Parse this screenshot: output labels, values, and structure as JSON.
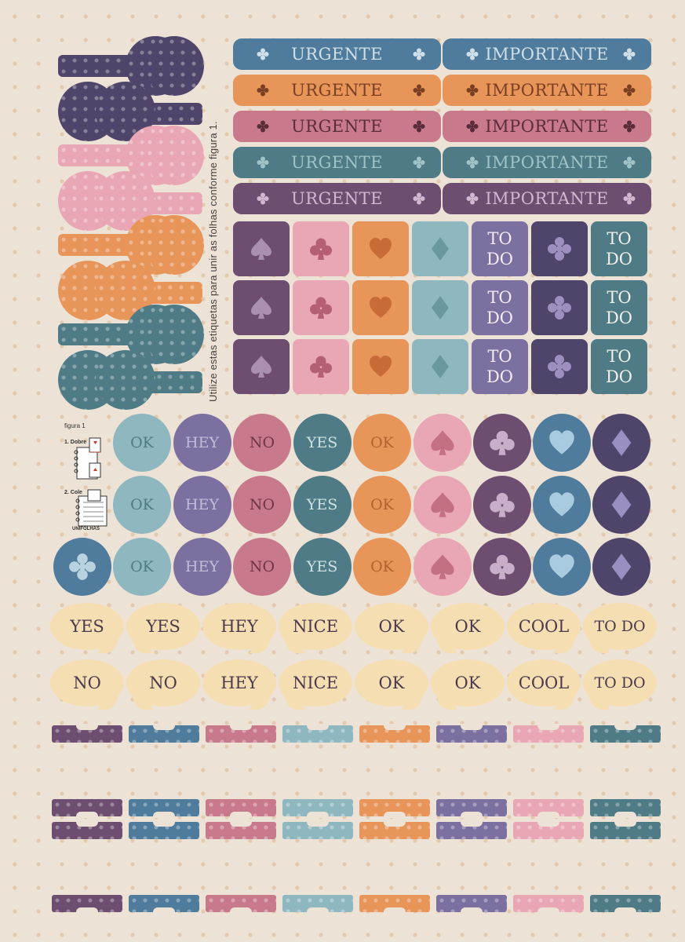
{
  "colors": {
    "blue": "#4f7c9c",
    "orange": "#e8955a",
    "rose": "#c87a8c",
    "teal": "#4e7b86",
    "plum": "#6d4e70",
    "pink": "#e9a6b4",
    "aqua": "#8fb7bf",
    "lavender": "#7b70a0",
    "navy": "#4f4469",
    "cream": "#f6deb3",
    "background": "#ede2d6"
  },
  "side_note": "Utilize estas etiquetas para unir as folhas conforme figura 1.",
  "tag_rows": [
    {
      "left": "URGENTE",
      "right": "IMPORTANTE"
    },
    {
      "left": "URGENTE",
      "right": "IMPORTANTE"
    },
    {
      "left": "URGENTE",
      "right": "IMPORTANTE"
    },
    {
      "left": "URGENTE",
      "right": "IMPORTANTE"
    },
    {
      "left": "URGENTE",
      "right": "IMPORTANTE"
    }
  ],
  "todo_label": "TO DO",
  "todo_line1": "TO",
  "todo_line2": "DO",
  "square_icons": [
    "spade-icon",
    "club-icon",
    "heart-icon",
    "diamond-icon",
    "todo-text",
    "club-icon",
    "todo-text"
  ],
  "circle_row_labels": [
    "OK",
    "HEY",
    "NO",
    "YES",
    "OK"
  ],
  "circle_icons": [
    "spade-icon",
    "club-icon",
    "heart-icon",
    "diamond-icon"
  ],
  "bubble_rows": [
    [
      "YES",
      "YES",
      "HEY",
      "NICE",
      "OK",
      "OK",
      "COOL",
      "TO DO"
    ],
    [
      "NO",
      "NO",
      "HEY",
      "NICE",
      "OK",
      "OK",
      "COOL",
      "TO DO"
    ]
  ],
  "figure": {
    "title": "figura 1",
    "step1": "1. Dobre",
    "step2": "2. Cole",
    "brand": "UNIFOLHAS"
  }
}
